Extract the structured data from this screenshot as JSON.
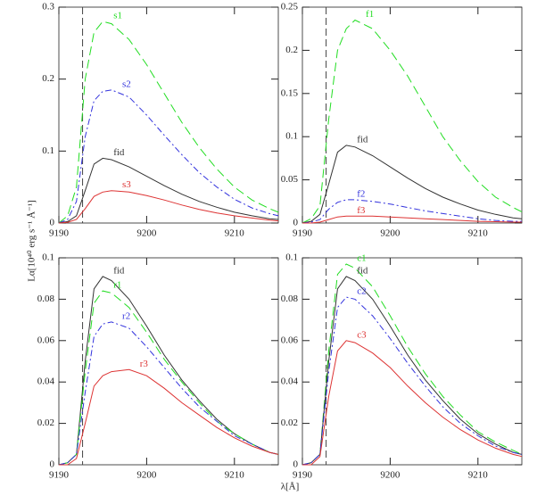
{
  "xlabel": "λ[Å]",
  "ylabel": "Lα[10⁴⁰ erg s⁻¹ Å⁻¹]",
  "chart_data": [
    {
      "type": "line",
      "x": [
        9190,
        9191,
        9192,
        9193,
        9194,
        9195,
        9196,
        9198,
        9200,
        9202,
        9204,
        9206,
        9208,
        9210,
        9212,
        9214,
        9215
      ],
      "xlim": [
        9190,
        9215
      ],
      "xticks": [
        9190,
        9200,
        9210
      ],
      "ylim": [
        0,
        0.3
      ],
      "yticks": [
        0,
        0.1,
        0.2,
        0.3
      ],
      "vline": 9192.7,
      "series": [
        {
          "name": "s1",
          "color": "#22dd22",
          "linestyle": "dashed",
          "values": [
            0,
            0.01,
            0.05,
            0.2,
            0.265,
            0.28,
            0.277,
            0.255,
            0.22,
            0.18,
            0.14,
            0.105,
            0.075,
            0.05,
            0.032,
            0.02,
            0.015
          ]
        },
        {
          "name": "s2",
          "color": "#3333dd",
          "linestyle": "dashdot",
          "values": [
            0,
            0.005,
            0.03,
            0.12,
            0.17,
            0.183,
            0.185,
            0.175,
            0.15,
            0.122,
            0.095,
            0.07,
            0.05,
            0.033,
            0.021,
            0.013,
            0.01
          ]
        },
        {
          "name": "fid",
          "color": "#333333",
          "linestyle": "solid",
          "values": [
            0,
            0.002,
            0.01,
            0.045,
            0.082,
            0.09,
            0.088,
            0.078,
            0.065,
            0.052,
            0.04,
            0.03,
            0.022,
            0.015,
            0.01,
            0.006,
            0.005
          ]
        },
        {
          "name": "s3",
          "color": "#dd3333",
          "linestyle": "solid",
          "values": [
            0,
            0.001,
            0.005,
            0.02,
            0.037,
            0.043,
            0.045,
            0.043,
            0.038,
            0.032,
            0.025,
            0.019,
            0.014,
            0.01,
            0.007,
            0.004,
            0.003
          ]
        }
      ]
    },
    {
      "type": "line",
      "x": [
        9190,
        9191,
        9192,
        9193,
        9194,
        9195,
        9196,
        9198,
        9200,
        9202,
        9204,
        9206,
        9208,
        9210,
        9212,
        9214,
        9215
      ],
      "xlim": [
        9190,
        9215
      ],
      "xticks": [
        9190,
        9200,
        9210
      ],
      "ylim": [
        0,
        0.25
      ],
      "yticks": [
        0,
        0.05,
        0.1,
        0.15,
        0.2,
        0.25
      ],
      "vline": 9192.7,
      "series": [
        {
          "name": "f1",
          "color": "#22dd22",
          "linestyle": "dashed",
          "values": [
            0,
            0.005,
            0.02,
            0.12,
            0.2,
            0.225,
            0.235,
            0.225,
            0.2,
            0.17,
            0.135,
            0.1,
            0.072,
            0.048,
            0.03,
            0.018,
            0.013
          ]
        },
        {
          "name": "fid",
          "color": "#333333",
          "linestyle": "solid",
          "values": [
            0,
            0.002,
            0.01,
            0.045,
            0.082,
            0.09,
            0.088,
            0.078,
            0.065,
            0.052,
            0.04,
            0.03,
            0.022,
            0.015,
            0.01,
            0.006,
            0.005
          ]
        },
        {
          "name": "f2",
          "color": "#3333dd",
          "linestyle": "dashdot",
          "values": [
            0,
            0.001,
            0.004,
            0.016,
            0.024,
            0.027,
            0.027,
            0.025,
            0.022,
            0.018,
            0.014,
            0.011,
            0.008,
            0.005,
            0.003,
            0.002,
            0.002
          ]
        },
        {
          "name": "f3",
          "color": "#dd3333",
          "linestyle": "solid",
          "values": [
            0,
            0,
            0.001,
            0.004,
            0.007,
            0.008,
            0.008,
            0.008,
            0.007,
            0.006,
            0.005,
            0.004,
            0.003,
            0.002,
            0.0015,
            0.001,
            0.001
          ]
        }
      ]
    },
    {
      "type": "line",
      "x": [
        9190,
        9191,
        9192,
        9193,
        9194,
        9195,
        9196,
        9198,
        9200,
        9202,
        9204,
        9206,
        9208,
        9210,
        9212,
        9214,
        9215
      ],
      "xlim": [
        9190,
        9215
      ],
      "xticks": [
        9190,
        9200,
        9210
      ],
      "ylim": [
        0,
        0.1
      ],
      "yticks": [
        0,
        0.02,
        0.04,
        0.06,
        0.08,
        0.1
      ],
      "vline": 9192.7,
      "series": [
        {
          "name": "fid",
          "color": "#333333",
          "linestyle": "solid",
          "values": [
            0,
            0.001,
            0.005,
            0.05,
            0.085,
            0.091,
            0.089,
            0.08,
            0.067,
            0.053,
            0.041,
            0.031,
            0.022,
            0.015,
            0.01,
            0.006,
            0.005
          ]
        },
        {
          "name": "r1",
          "color": "#22dd22",
          "linestyle": "dashed",
          "values": [
            0,
            0.001,
            0.005,
            0.045,
            0.078,
            0.084,
            0.083,
            0.076,
            0.064,
            0.051,
            0.04,
            0.03,
            0.021,
            0.015,
            0.01,
            0.006,
            0.005
          ]
        },
        {
          "name": "r2",
          "color": "#3333dd",
          "linestyle": "dashdot",
          "values": [
            0,
            0.001,
            0.005,
            0.035,
            0.062,
            0.068,
            0.069,
            0.066,
            0.057,
            0.047,
            0.037,
            0.028,
            0.021,
            0.014,
            0.01,
            0.006,
            0.005
          ]
        },
        {
          "name": "r3",
          "color": "#dd3333",
          "linestyle": "solid",
          "values": [
            0,
            0,
            0.003,
            0.02,
            0.038,
            0.043,
            0.045,
            0.046,
            0.043,
            0.037,
            0.03,
            0.024,
            0.018,
            0.013,
            0.009,
            0.006,
            0.005
          ]
        }
      ]
    },
    {
      "type": "line",
      "x": [
        9190,
        9191,
        9192,
        9193,
        9194,
        9195,
        9196,
        9198,
        9200,
        9202,
        9204,
        9206,
        9208,
        9210,
        9212,
        9214,
        9215
      ],
      "xlim": [
        9190,
        9215
      ],
      "xticks": [
        9190,
        9200,
        9210
      ],
      "ylim": [
        0,
        0.1
      ],
      "yticks": [
        0,
        0.02,
        0.04,
        0.06,
        0.08,
        0.1
      ],
      "vline": 9192.7,
      "series": [
        {
          "name": "c1",
          "color": "#22dd22",
          "linestyle": "dashed",
          "values": [
            0,
            0.001,
            0.005,
            0.055,
            0.092,
            0.097,
            0.095,
            0.086,
            0.072,
            0.057,
            0.044,
            0.033,
            0.024,
            0.016,
            0.011,
            0.007,
            0.005
          ]
        },
        {
          "name": "fid",
          "color": "#333333",
          "linestyle": "solid",
          "values": [
            0,
            0.001,
            0.005,
            0.05,
            0.085,
            0.091,
            0.089,
            0.08,
            0.067,
            0.053,
            0.041,
            0.031,
            0.022,
            0.015,
            0.01,
            0.006,
            0.005
          ]
        },
        {
          "name": "c2",
          "color": "#3333dd",
          "linestyle": "dashdot",
          "values": [
            0,
            0.001,
            0.005,
            0.045,
            0.076,
            0.081,
            0.08,
            0.072,
            0.061,
            0.049,
            0.038,
            0.028,
            0.02,
            0.014,
            0.009,
            0.006,
            0.005
          ]
        },
        {
          "name": "c3",
          "color": "#dd3333",
          "linestyle": "solid",
          "values": [
            0,
            0,
            0.004,
            0.033,
            0.055,
            0.06,
            0.059,
            0.054,
            0.047,
            0.038,
            0.03,
            0.023,
            0.017,
            0.012,
            0.008,
            0.005,
            0.004
          ]
        }
      ]
    }
  ]
}
